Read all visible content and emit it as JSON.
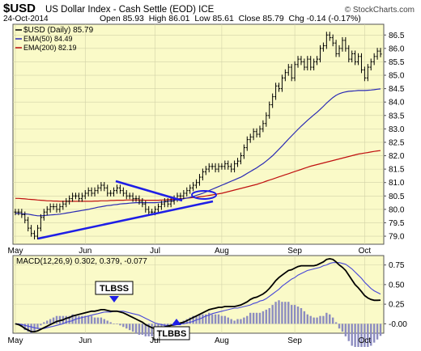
{
  "header": {
    "symbol": "$USD",
    "title": "US Dollar Index - Cash Settle (EOD) ICE",
    "date": "24-Oct-2014",
    "ohlc": "Open 85.93  High 86.01  Low 85.61  Close 85.79  Chg -0.14 (-0.17%)",
    "watermark": "© StockCharts.com"
  },
  "legend": {
    "price": "$USD (Daily) 85.79",
    "ema50": "EMA(50) 84.49",
    "ema200": "EMA(200) 82.19",
    "macd": "MACD(12,26,9) 0.302, 0.379, -0.077"
  },
  "annotations": {
    "tlbss": "TLBSS",
    "tlbbs": "TLBBS"
  },
  "colors": {
    "plot_bg": "#fafac8",
    "price": "#000000",
    "ema50": "#2a2ab4",
    "ema200": "#c01010",
    "trendline": "#1e1ee6",
    "macd_signal": "#4848d8",
    "histogram": "#8c8cc0"
  },
  "chart_data": [
    {
      "type": "line",
      "title": "US Dollar Index - Cash Settle (EOD) ICE",
      "ylim": [
        78.7,
        86.9
      ],
      "yticks": [
        "79.0",
        "79.5",
        "80.0",
        "80.5",
        "81.0",
        "81.5",
        "82.0",
        "82.5",
        "83.0",
        "83.5",
        "84.0",
        "84.5",
        "85.0",
        "85.5",
        "86.0",
        "86.5"
      ],
      "xticks": [
        "May",
        "Jun",
        "Jul",
        "Aug",
        "Sep",
        "Oct"
      ],
      "xtick_idx": [
        0,
        22,
        44,
        65,
        88,
        110
      ],
      "grid": true,
      "legend_position": "top-left",
      "series": [
        {
          "name": "$USD (Daily) 85.79",
          "values": [
            79.9,
            79.9,
            79.8,
            79.6,
            79.3,
            79.1,
            79.0,
            79.3,
            79.7,
            79.9,
            80.0,
            80.1,
            80.1,
            80.0,
            80.1,
            80.2,
            80.3,
            80.4,
            80.5,
            80.5,
            80.4,
            80.5,
            80.6,
            80.7,
            80.6,
            80.7,
            80.8,
            80.9,
            80.8,
            80.6,
            80.6,
            80.7,
            80.8,
            80.7,
            80.6,
            80.5,
            80.5,
            80.4,
            80.4,
            80.3,
            80.2,
            80.0,
            79.9,
            79.9,
            80.0,
            80.1,
            80.2,
            80.3,
            80.2,
            80.3,
            80.4,
            80.5,
            80.5,
            80.6,
            80.7,
            80.8,
            80.9,
            81.0,
            81.2,
            81.4,
            81.5,
            81.6,
            81.6,
            81.5,
            81.6,
            81.6,
            81.7,
            81.6,
            81.5,
            81.7,
            81.8,
            82.0,
            82.3,
            82.6,
            82.7,
            82.9,
            82.8,
            83.0,
            83.2,
            83.5,
            83.9,
            84.2,
            84.6,
            84.5,
            84.9,
            85.1,
            85.3,
            84.9,
            85.4,
            85.6,
            85.5,
            85.3,
            85.6,
            85.3,
            85.5,
            85.6,
            86.0,
            86.1,
            86.5,
            86.4,
            86.2,
            85.8,
            86.0,
            86.3,
            86.0,
            85.6,
            85.8,
            85.5,
            85.7,
            85.2,
            84.9,
            85.3,
            85.5,
            85.7,
            85.9,
            85.79
          ]
        },
        {
          "name": "EMA(50) 84.49",
          "values": [
            79.85,
            79.85,
            79.84,
            79.83,
            79.82,
            79.8,
            79.78,
            79.76,
            79.76,
            79.77,
            79.78,
            79.79,
            79.8,
            79.81,
            79.82,
            79.84,
            79.86,
            79.88,
            79.9,
            79.92,
            79.94,
            79.96,
            79.98,
            80.0,
            80.03,
            80.05,
            80.08,
            80.1,
            80.12,
            80.14,
            80.15,
            80.17,
            80.18,
            80.2,
            80.21,
            80.22,
            80.23,
            80.24,
            80.25,
            80.25,
            80.25,
            80.25,
            80.25,
            80.25,
            80.25,
            80.26,
            80.27,
            80.28,
            80.3,
            80.32,
            80.34,
            80.36,
            80.38,
            80.4,
            80.42,
            80.45,
            80.48,
            80.52,
            80.56,
            80.6,
            80.65,
            80.7,
            80.75,
            80.8,
            80.85,
            80.9,
            80.95,
            81.0,
            81.05,
            81.1,
            81.15,
            81.2,
            81.27,
            81.34,
            81.41,
            81.48,
            81.55,
            81.63,
            81.71,
            81.8,
            81.9,
            82.0,
            82.12,
            82.24,
            82.36,
            82.49,
            82.62,
            82.74,
            82.86,
            82.98,
            83.1,
            83.21,
            83.32,
            83.42,
            83.52,
            83.62,
            83.73,
            83.84,
            83.96,
            84.07,
            84.17,
            84.25,
            84.31,
            84.35,
            84.38,
            84.4,
            84.41,
            84.42,
            84.43,
            84.43,
            84.43,
            84.44,
            84.45,
            84.46,
            84.48,
            84.49
          ]
        },
        {
          "name": "EMA(200) 82.19",
          "values": [
            80.41,
            80.41,
            80.4,
            80.39,
            80.38,
            80.37,
            80.36,
            80.35,
            80.34,
            80.33,
            80.32,
            80.32,
            80.31,
            80.31,
            80.3,
            80.3,
            80.3,
            80.3,
            80.3,
            80.3,
            80.3,
            80.3,
            80.3,
            80.3,
            80.3,
            80.31,
            80.31,
            80.32,
            80.32,
            80.32,
            80.33,
            80.33,
            80.34,
            80.34,
            80.34,
            80.35,
            80.35,
            80.35,
            80.35,
            80.35,
            80.35,
            80.34,
            80.34,
            80.34,
            80.34,
            80.34,
            80.35,
            80.35,
            80.36,
            80.37,
            80.38,
            80.39,
            80.4,
            80.41,
            80.42,
            80.43,
            80.44,
            80.45,
            80.47,
            80.48,
            80.5,
            80.52,
            80.54,
            80.56,
            80.58,
            80.6,
            80.63,
            80.66,
            80.69,
            80.72,
            80.75,
            80.78,
            80.81,
            80.84,
            80.87,
            80.9,
            80.93,
            80.97,
            81.01,
            81.05,
            81.09,
            81.13,
            81.17,
            81.21,
            81.25,
            81.29,
            81.33,
            81.37,
            81.41,
            81.45,
            81.49,
            81.53,
            81.57,
            81.61,
            81.64,
            81.67,
            81.7,
            81.73,
            81.76,
            81.79,
            81.82,
            81.85,
            81.88,
            81.91,
            81.94,
            81.97,
            82.0,
            82.03,
            82.06,
            82.08,
            82.1,
            82.12,
            82.14,
            82.16,
            82.18,
            82.19
          ]
        }
      ]
    },
    {
      "type": "line",
      "title": "MACD(12,26,9) 0.302, 0.379, -0.077",
      "ylim": [
        -0.12,
        0.87
      ],
      "yticks": [
        "-0.00",
        "0.25",
        "0.50",
        "0.75"
      ],
      "xticks": [
        "May",
        "Jun",
        "Jul",
        "Aug",
        "Sep",
        "Oct"
      ],
      "xtick_idx": [
        0,
        22,
        44,
        65,
        88,
        110
      ],
      "series": [
        {
          "name": "MACD",
          "values": [
            0.0,
            -0.01,
            -0.03,
            -0.06,
            -0.08,
            -0.1,
            -0.1,
            -0.09,
            -0.07,
            -0.05,
            -0.03,
            -0.01,
            0.01,
            0.03,
            0.04,
            0.05,
            0.07,
            0.08,
            0.1,
            0.11,
            0.12,
            0.13,
            0.14,
            0.15,
            0.16,
            0.16,
            0.17,
            0.18,
            0.18,
            0.17,
            0.16,
            0.16,
            0.16,
            0.15,
            0.14,
            0.12,
            0.1,
            0.08,
            0.06,
            0.04,
            0.02,
            -0.01,
            -0.03,
            -0.05,
            -0.06,
            -0.06,
            -0.05,
            -0.04,
            -0.03,
            -0.02,
            -0.01,
            0.0,
            0.01,
            0.02,
            0.04,
            0.06,
            0.08,
            0.1,
            0.12,
            0.14,
            0.16,
            0.18,
            0.19,
            0.2,
            0.21,
            0.21,
            0.22,
            0.22,
            0.22,
            0.22,
            0.23,
            0.24,
            0.26,
            0.28,
            0.31,
            0.33,
            0.34,
            0.36,
            0.38,
            0.41,
            0.45,
            0.5,
            0.55,
            0.59,
            0.62,
            0.65,
            0.68,
            0.69,
            0.71,
            0.73,
            0.74,
            0.74,
            0.74,
            0.74,
            0.74,
            0.75,
            0.77,
            0.79,
            0.82,
            0.83,
            0.82,
            0.79,
            0.75,
            0.72,
            0.68,
            0.62,
            0.56,
            0.5,
            0.46,
            0.41,
            0.36,
            0.33,
            0.31,
            0.3,
            0.3,
            0.302
          ]
        },
        {
          "name": "Signal",
          "values": [
            0.0,
            0.0,
            -0.01,
            -0.02,
            -0.03,
            -0.04,
            -0.05,
            -0.06,
            -0.06,
            -0.06,
            -0.05,
            -0.04,
            -0.03,
            -0.02,
            -0.01,
            0.0,
            0.02,
            0.03,
            0.04,
            0.06,
            0.07,
            0.08,
            0.09,
            0.1,
            0.11,
            0.12,
            0.13,
            0.14,
            0.15,
            0.15,
            0.15,
            0.16,
            0.16,
            0.16,
            0.16,
            0.15,
            0.14,
            0.13,
            0.12,
            0.11,
            0.09,
            0.07,
            0.05,
            0.03,
            0.01,
            0.0,
            -0.01,
            -0.02,
            -0.02,
            -0.02,
            -0.02,
            -0.01,
            0.0,
            0.0,
            0.01,
            0.02,
            0.03,
            0.05,
            0.06,
            0.08,
            0.1,
            0.11,
            0.13,
            0.14,
            0.15,
            0.16,
            0.17,
            0.18,
            0.19,
            0.2,
            0.2,
            0.21,
            0.22,
            0.23,
            0.24,
            0.26,
            0.27,
            0.29,
            0.3,
            0.32,
            0.35,
            0.38,
            0.41,
            0.44,
            0.48,
            0.51,
            0.54,
            0.57,
            0.59,
            0.62,
            0.64,
            0.66,
            0.68,
            0.69,
            0.7,
            0.71,
            0.72,
            0.74,
            0.75,
            0.77,
            0.78,
            0.78,
            0.78,
            0.77,
            0.76,
            0.73,
            0.7,
            0.66,
            0.62,
            0.58,
            0.53,
            0.49,
            0.45,
            0.42,
            0.4,
            0.379
          ]
        }
      ]
    }
  ]
}
